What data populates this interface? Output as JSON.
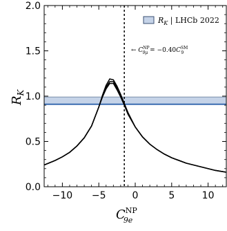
{
  "chart_data": {
    "type": "line",
    "title": "",
    "xlabel": {
      "main": "C",
      "sup": "NP",
      "sub": "9e"
    },
    "ylabel": {
      "main": "R",
      "sub": "K"
    },
    "xlim": [
      -12.5,
      12.5
    ],
    "ylim": [
      0,
      2.0
    ],
    "xticks": [
      -10,
      -5,
      0,
      5,
      10
    ],
    "xtick_labels": [
      "−10",
      "−5",
      "0",
      "5",
      "10"
    ],
    "yticks": [
      0.0,
      0.5,
      1.0,
      1.5,
      2.0
    ],
    "ytick_labels": [
      "0.0",
      "0.5",
      "1.0",
      "1.5",
      "2.0"
    ],
    "grid": false,
    "legend_position": "top-right",
    "band": {
      "name": "R_K | LHCb 2022",
      "legend_main": "R",
      "legend_sub": "K",
      "legend_rest": " | LHCb 2022",
      "y_low": 0.91,
      "y_high": 0.99,
      "fill": "#c5d3e8",
      "edge": "#3a6cb0"
    },
    "vline": {
      "x": -1.5,
      "label": "← C_9μ^NP = −0.40 C_9^SM",
      "label_arrow": "← ",
      "label_c1": "C",
      "label_sup1": "NP",
      "label_sub1": "9μ",
      "label_mid": " = −0.40",
      "label_c2": "C",
      "label_sup2": "SM",
      "label_sub2": "9",
      "color": "#000000"
    },
    "series": [
      {
        "x": [
          -12.5,
          -11,
          -10,
          -9,
          -8,
          -7,
          -6,
          -5,
          -4.5,
          -4,
          -3.5,
          -3,
          -2.5,
          -2,
          -1.5,
          -1,
          0,
          1,
          2,
          3,
          4,
          5,
          6,
          7,
          8,
          9,
          10,
          11,
          12.5
        ],
        "y": [
          0.24,
          0.29,
          0.33,
          0.38,
          0.45,
          0.54,
          0.67,
          0.88,
          1.01,
          1.12,
          1.19,
          1.18,
          1.11,
          1.02,
          0.92,
          0.82,
          0.66,
          0.55,
          0.47,
          0.41,
          0.36,
          0.32,
          0.29,
          0.26,
          0.24,
          0.22,
          0.2,
          0.18,
          0.16
        ]
      },
      {
        "x": [
          -12.5,
          -11,
          -10,
          -9,
          -8,
          -7,
          -6,
          -5,
          -4.5,
          -4,
          -3.5,
          -3,
          -2.5,
          -2,
          -1.5,
          -1,
          0,
          1,
          2,
          3,
          4,
          5,
          6,
          7,
          8,
          9,
          10,
          11,
          12.5
        ],
        "y": [
          0.24,
          0.29,
          0.33,
          0.38,
          0.45,
          0.54,
          0.67,
          0.88,
          1.0,
          1.1,
          1.16,
          1.16,
          1.09,
          1.0,
          0.91,
          0.81,
          0.66,
          0.55,
          0.47,
          0.41,
          0.36,
          0.32,
          0.29,
          0.26,
          0.24,
          0.22,
          0.2,
          0.18,
          0.16
        ]
      },
      {
        "x": [
          -12.5,
          -11,
          -10,
          -9,
          -8,
          -7,
          -6,
          -5,
          -4.5,
          -4,
          -3.5,
          -3,
          -2.5,
          -2,
          -1.5,
          -1,
          0,
          1,
          2,
          3,
          4,
          5,
          6,
          7,
          8,
          9,
          10,
          11,
          12.5
        ],
        "y": [
          0.24,
          0.29,
          0.33,
          0.38,
          0.45,
          0.54,
          0.67,
          0.88,
          0.99,
          1.08,
          1.14,
          1.14,
          1.07,
          0.99,
          0.9,
          0.8,
          0.66,
          0.55,
          0.47,
          0.41,
          0.36,
          0.32,
          0.29,
          0.26,
          0.24,
          0.22,
          0.2,
          0.18,
          0.16
        ]
      }
    ]
  }
}
